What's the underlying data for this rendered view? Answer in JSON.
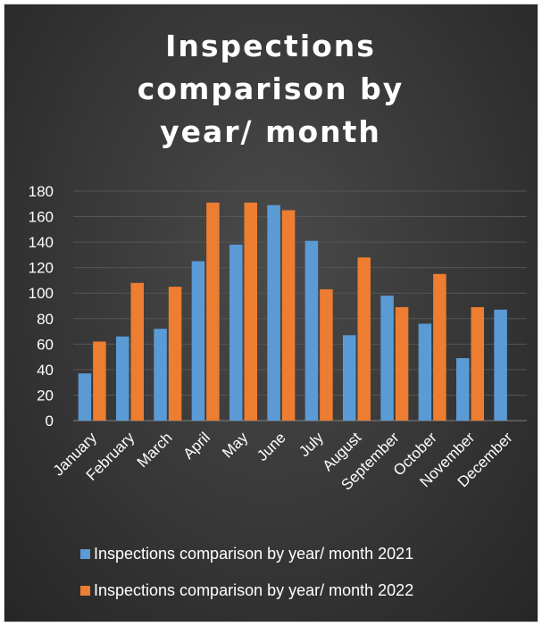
{
  "chart_data": {
    "type": "bar",
    "title": "Inspections comparison by year/ month",
    "categories": [
      "January",
      "February",
      "March",
      "April",
      "May",
      "June",
      "July",
      "August",
      "September",
      "October",
      "November",
      "December"
    ],
    "series": [
      {
        "name": "Inspections comparison by year/ month 2021",
        "color": "#5b9bd5",
        "values": [
          37,
          66,
          72,
          125,
          138,
          169,
          141,
          67,
          98,
          76,
          49,
          87
        ]
      },
      {
        "name": "Inspections comparison by year/ month 2022",
        "color": "#ed7d31",
        "values": [
          62,
          108,
          105,
          171,
          171,
          165,
          103,
          128,
          89,
          115,
          89,
          null
        ]
      }
    ],
    "ylim": [
      0,
      180
    ],
    "yticks": [
      0,
      20,
      40,
      60,
      80,
      100,
      120,
      140,
      160,
      180
    ],
    "grid": true,
    "legend_position": "bottom",
    "background": "#3a3a3a",
    "text_color": "#ffffff"
  }
}
